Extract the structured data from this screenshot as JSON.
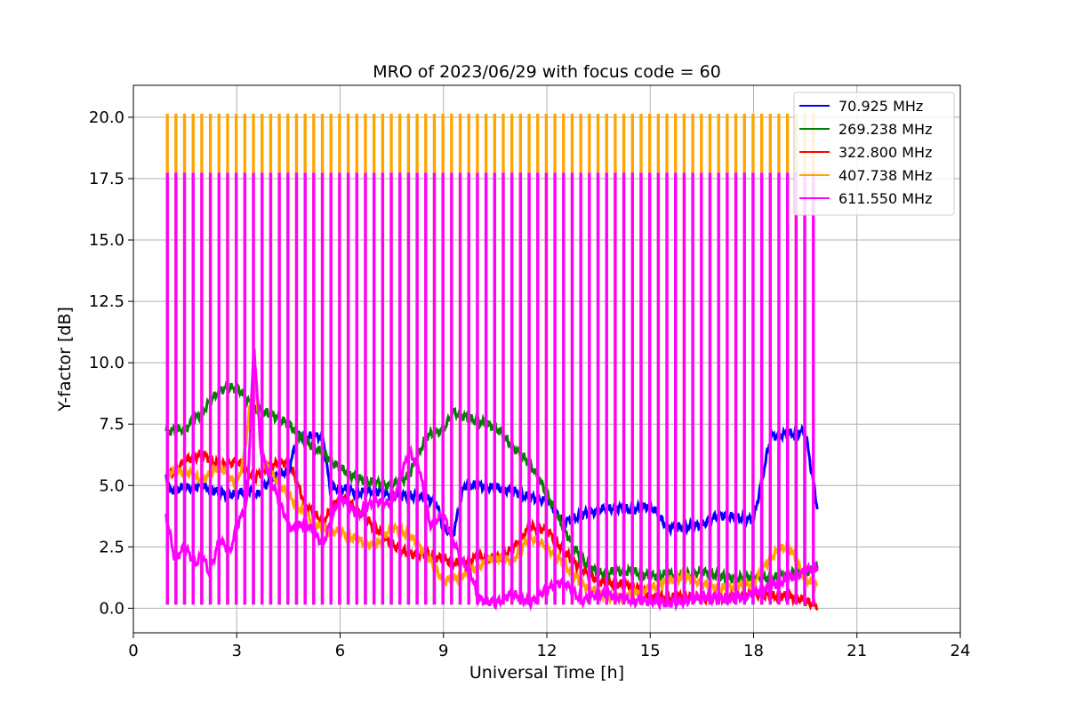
{
  "chart_data": {
    "type": "line",
    "title": "MRO of 2023/06/29 with focus code = 60",
    "xlabel": "Universal Time [h]",
    "ylabel": "Y-factor [dB]",
    "xlim": [
      0,
      24
    ],
    "ylim": [
      -1.0,
      21.3
    ],
    "xticks": [
      0,
      3,
      6,
      9,
      12,
      15,
      18,
      21,
      24
    ],
    "xtick_labels": [
      "0",
      "3",
      "6",
      "9",
      "12",
      "15",
      "18",
      "21",
      "24"
    ],
    "yticks": [
      0.0,
      2.5,
      5.0,
      7.5,
      10.0,
      12.5,
      15.0,
      17.5,
      20.0
    ],
    "ytick_labels": [
      "0.0",
      "2.5",
      "5.0",
      "7.5",
      "10.0",
      "12.5",
      "15.0",
      "17.5",
      "20.0"
    ],
    "grid": true,
    "legend_position": "top-right",
    "calibration": {
      "start_h": 0.97,
      "end_h": 19.83,
      "period_h": 0.25,
      "spike_width_h": 0.03,
      "levels": {
        "407.738 MHz": 20.1,
        "611.550 MHz": 17.7
      }
    },
    "series": [
      {
        "name": " 70.925 MHz",
        "color": "#0000ff",
        "x": [
          0.95,
          1.0,
          1.5,
          2.0,
          2.5,
          3.0,
          3.3,
          3.6,
          4.0,
          4.5,
          4.8,
          5.0,
          5.5,
          5.7,
          6.0,
          6.5,
          7.0,
          7.5,
          8.0,
          8.5,
          8.8,
          9.0,
          9.3,
          9.6,
          10.0,
          10.5,
          11.0,
          11.5,
          12.0,
          12.5,
          13.0,
          13.5,
          14.0,
          14.5,
          15.0,
          15.5,
          16.0,
          16.5,
          17.0,
          17.5,
          18.0,
          18.5,
          19.0,
          19.5,
          19.85
        ],
        "y": [
          5.6,
          4.8,
          4.9,
          5.0,
          4.7,
          4.6,
          4.9,
          4.6,
          5.3,
          5.6,
          7.1,
          7.0,
          7.0,
          4.9,
          4.9,
          4.7,
          4.8,
          4.6,
          4.6,
          4.5,
          4.3,
          3.2,
          3.1,
          5.0,
          5.0,
          4.9,
          4.8,
          4.5,
          4.4,
          3.5,
          3.8,
          4.0,
          4.1,
          4.0,
          4.2,
          3.3,
          3.3,
          3.4,
          3.8,
          3.7,
          3.6,
          7.0,
          7.1,
          7.2,
          4.1
        ]
      },
      {
        "name": "269.238 MHz",
        "color": "#008000",
        "x": [
          0.95,
          1.5,
          2.0,
          2.5,
          3.0,
          3.2,
          3.5,
          4.0,
          4.5,
          5.0,
          5.5,
          6.0,
          6.5,
          7.0,
          7.5,
          8.0,
          8.5,
          9.0,
          9.3,
          9.6,
          10.0,
          10.5,
          11.0,
          11.5,
          12.0,
          12.5,
          13.0,
          13.5,
          14.0,
          14.5,
          15.0,
          15.5,
          16.0,
          16.5,
          17.0,
          17.5,
          18.0,
          18.5,
          19.0,
          19.5,
          19.85
        ],
        "y": [
          7.2,
          7.3,
          8.0,
          8.9,
          9.0,
          8.7,
          8.1,
          7.9,
          7.5,
          6.8,
          6.3,
          5.7,
          5.3,
          5.1,
          5.0,
          5.4,
          7.0,
          7.3,
          8.0,
          7.8,
          7.6,
          7.4,
          6.6,
          5.9,
          4.7,
          3.2,
          2.0,
          1.4,
          1.5,
          1.5,
          1.3,
          1.4,
          1.3,
          1.5,
          1.3,
          1.2,
          1.3,
          1.2,
          1.4,
          1.5,
          1.6
        ]
      },
      {
        "name": "322.800 MHz",
        "color": "#ff0000",
        "x": [
          0.95,
          1.5,
          2.0,
          2.5,
          3.0,
          3.5,
          4.0,
          4.5,
          5.0,
          5.5,
          6.0,
          6.5,
          7.0,
          7.5,
          8.0,
          8.5,
          9.0,
          9.5,
          10.0,
          10.5,
          11.0,
          11.5,
          12.0,
          12.5,
          13.0,
          13.5,
          14.0,
          14.5,
          15.0,
          15.5,
          16.0,
          16.5,
          17.0,
          17.5,
          18.0,
          18.5,
          19.0,
          19.5,
          19.85
        ],
        "y": [
          5.3,
          6.0,
          6.3,
          5.8,
          6.0,
          5.3,
          5.8,
          6.0,
          4.2,
          3.5,
          4.6,
          4.0,
          3.3,
          2.6,
          2.2,
          2.2,
          2.0,
          1.8,
          2.1,
          2.0,
          2.4,
          3.3,
          3.2,
          2.3,
          1.6,
          1.1,
          1.0,
          0.9,
          0.5,
          0.4,
          0.5,
          0.4,
          0.4,
          0.5,
          0.6,
          0.5,
          0.5,
          0.3,
          0.1
        ]
      },
      {
        "name": "407.738 MHz",
        "color": "#ffa500",
        "x": [
          0.95,
          1.5,
          2.0,
          2.5,
          3.0,
          3.2,
          3.5,
          3.8,
          4.0,
          4.5,
          5.0,
          5.5,
          6.0,
          6.5,
          7.0,
          7.5,
          8.0,
          8.5,
          9.0,
          9.5,
          10.0,
          10.5,
          11.0,
          11.5,
          12.0,
          12.5,
          13.0,
          13.5,
          14.0,
          14.5,
          15.0,
          15.5,
          16.0,
          16.5,
          17.0,
          17.5,
          18.0,
          18.5,
          19.0,
          19.5,
          19.85
        ],
        "y": [
          5.5,
          5.6,
          5.2,
          5.8,
          5.0,
          6.1,
          9.5,
          6.0,
          5.5,
          4.6,
          3.8,
          3.2,
          3.1,
          2.8,
          2.5,
          3.3,
          3.0,
          2.2,
          1.1,
          1.3,
          1.7,
          2.1,
          1.9,
          2.9,
          2.5,
          1.8,
          1.0,
          0.6,
          0.4,
          0.6,
          0.8,
          1.1,
          1.3,
          1.0,
          0.8,
          0.9,
          1.0,
          2.1,
          2.6,
          1.2,
          0.9
        ]
      },
      {
        "name": "611.550 MHz",
        "color": "#ff00ff",
        "x": [
          0.95,
          1.2,
          1.5,
          1.8,
          2.0,
          2.2,
          2.5,
          2.8,
          3.0,
          3.3,
          3.5,
          3.7,
          4.0,
          4.3,
          4.6,
          5.0,
          5.5,
          6.0,
          6.5,
          7.0,
          7.5,
          8.0,
          8.3,
          8.6,
          9.0,
          9.5,
          9.8,
          10.0,
          10.5,
          11.0,
          11.5,
          12.0,
          12.5,
          13.0,
          13.5,
          14.0,
          14.5,
          15.0,
          15.5,
          16.0,
          16.5,
          17.0,
          17.5,
          18.0,
          18.5,
          19.0,
          19.5,
          19.85
        ],
        "y": [
          3.8,
          2.0,
          2.5,
          1.8,
          2.2,
          1.4,
          2.8,
          2.3,
          3.3,
          4.3,
          10.8,
          6.4,
          5.2,
          4.1,
          3.2,
          3.5,
          2.6,
          4.6,
          3.8,
          4.4,
          4.2,
          6.4,
          5.7,
          3.4,
          3.8,
          2.0,
          1.4,
          0.4,
          0.2,
          0.6,
          0.2,
          0.8,
          1.1,
          0.3,
          0.6,
          0.5,
          0.3,
          0.3,
          0.2,
          0.3,
          0.5,
          0.4,
          0.4,
          0.6,
          0.9,
          1.2,
          1.5,
          1.7
        ]
      }
    ]
  }
}
